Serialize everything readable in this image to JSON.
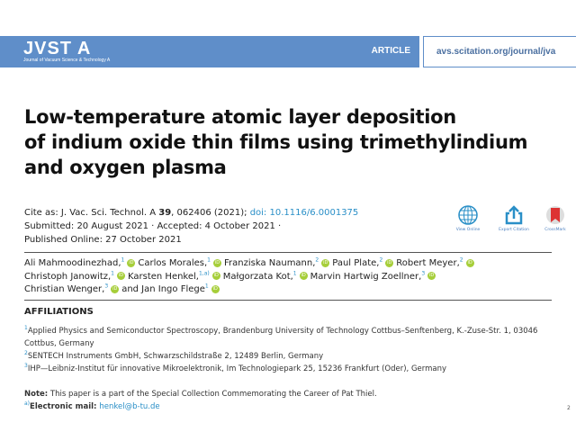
{
  "header": {
    "journal": "JVST A",
    "journal_full": "Journal of Vacuum Science & Technology A",
    "type": "ARTICLE",
    "url": "avs.scitation.org/journal/jva",
    "banner_color": "#5f8ec9"
  },
  "title": [
    "Low-temperature atomic layer deposition",
    "of indium oxide thin films using trimethylindium",
    "and oxygen plasma"
  ],
  "citation": {
    "prefix": "Cite as: J. Vac. Sci. Technol. A ",
    "volume": "39",
    "rest": ", 062406 (2021); ",
    "doi": "doi: 10.1116/6.0001375",
    "submitted": "Submitted: 20 August 2021 · Accepted: 4 October 2021 ·",
    "published": "Published Online: 27 October 2021"
  },
  "actions": [
    {
      "label": "View Online",
      "icon": "globe-icon"
    },
    {
      "label": "Export Citation",
      "icon": "export-icon"
    },
    {
      "label": "CrossMark",
      "icon": "crossmark-icon"
    }
  ],
  "authors": [
    {
      "name": "Ali Mahmoodinezhad,",
      "aff": "1"
    },
    {
      "name": "Carlos Morales,",
      "aff": "1"
    },
    {
      "name": "Franziska Naumann,",
      "aff": "2"
    },
    {
      "name": "Paul Plate,",
      "aff": "2"
    },
    {
      "name": "Robert Meyer,",
      "aff": "2"
    },
    {
      "name": "Christoph Janowitz,",
      "aff": "1"
    },
    {
      "name": "Karsten Henkel,",
      "aff": "1,a)"
    },
    {
      "name": "Małgorzata Kot,",
      "aff": "1"
    },
    {
      "name": "Marvin Hartwig Zoellner,",
      "aff": "3"
    },
    {
      "name": "Christian Wenger,",
      "aff": "3"
    },
    {
      "name": "and Jan Ingo Flege",
      "aff": "1"
    }
  ],
  "orcid_label": "iD",
  "affiliations_heading": "AFFILIATIONS",
  "affiliations": [
    {
      "num": "1",
      "text": "Applied Physics and Semiconductor Spectroscopy, Brandenburg University of Technology Cottbus–Senftenberg, K.-Zuse-Str. 1, 03046 Cottbus, Germany"
    },
    {
      "num": "2",
      "text": "SENTECH Instruments GmbH, Schwarzschildstraße 2, 12489 Berlin, Germany"
    },
    {
      "num": "3",
      "text": "IHP—Leibniz-Institut für innovative Mikroelektronik, Im Technologiepark 25, 15236 Frankfurt (Oder), Germany"
    }
  ],
  "note": {
    "label": "Note:",
    "text": " This paper is a part of the Special Collection Commemorating the Career of Pat Thiel.",
    "email_sup": "a)",
    "email_label": "Electronic mail: ",
    "email": "henkel@b-tu.de"
  },
  "page_number": "2"
}
